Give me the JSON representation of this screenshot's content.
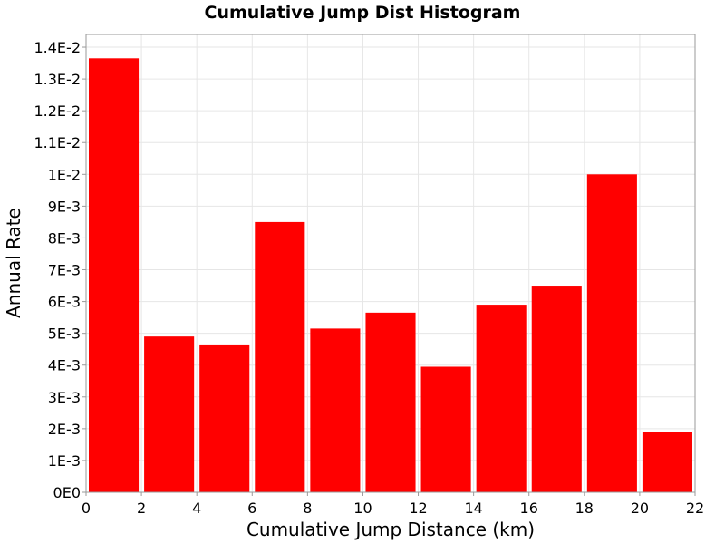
{
  "chart_data": {
    "type": "bar",
    "title": "Cumulative Jump Dist Histogram",
    "xlabel": "Cumulative Jump Distance (km)",
    "ylabel": "Annual Rate",
    "xlim": [
      0,
      22
    ],
    "ylim": [
      0,
      0.0144
    ],
    "x_ticks": [
      "0",
      "2",
      "4",
      "6",
      "8",
      "10",
      "12",
      "14",
      "16",
      "18",
      "20",
      "22"
    ],
    "y_ticks": [
      "0E0",
      "1E-3",
      "2E-3",
      "3E-3",
      "4E-3",
      "5E-3",
      "6E-3",
      "7E-3",
      "8E-3",
      "9E-3",
      "1E-2",
      "1.1E-2",
      "1.2E-2",
      "1.3E-2",
      "1.4E-2"
    ],
    "bin_width": 2,
    "bin_centers": [
      1,
      3,
      5,
      7,
      9,
      11,
      13,
      15,
      17,
      19,
      21
    ],
    "values": [
      0.01365,
      0.0049,
      0.00465,
      0.0085,
      0.00515,
      0.00565,
      0.00395,
      0.0059,
      0.0065,
      0.01,
      0.0019
    ],
    "bar_color": "#ff0000",
    "grid": true,
    "legend": "none"
  }
}
